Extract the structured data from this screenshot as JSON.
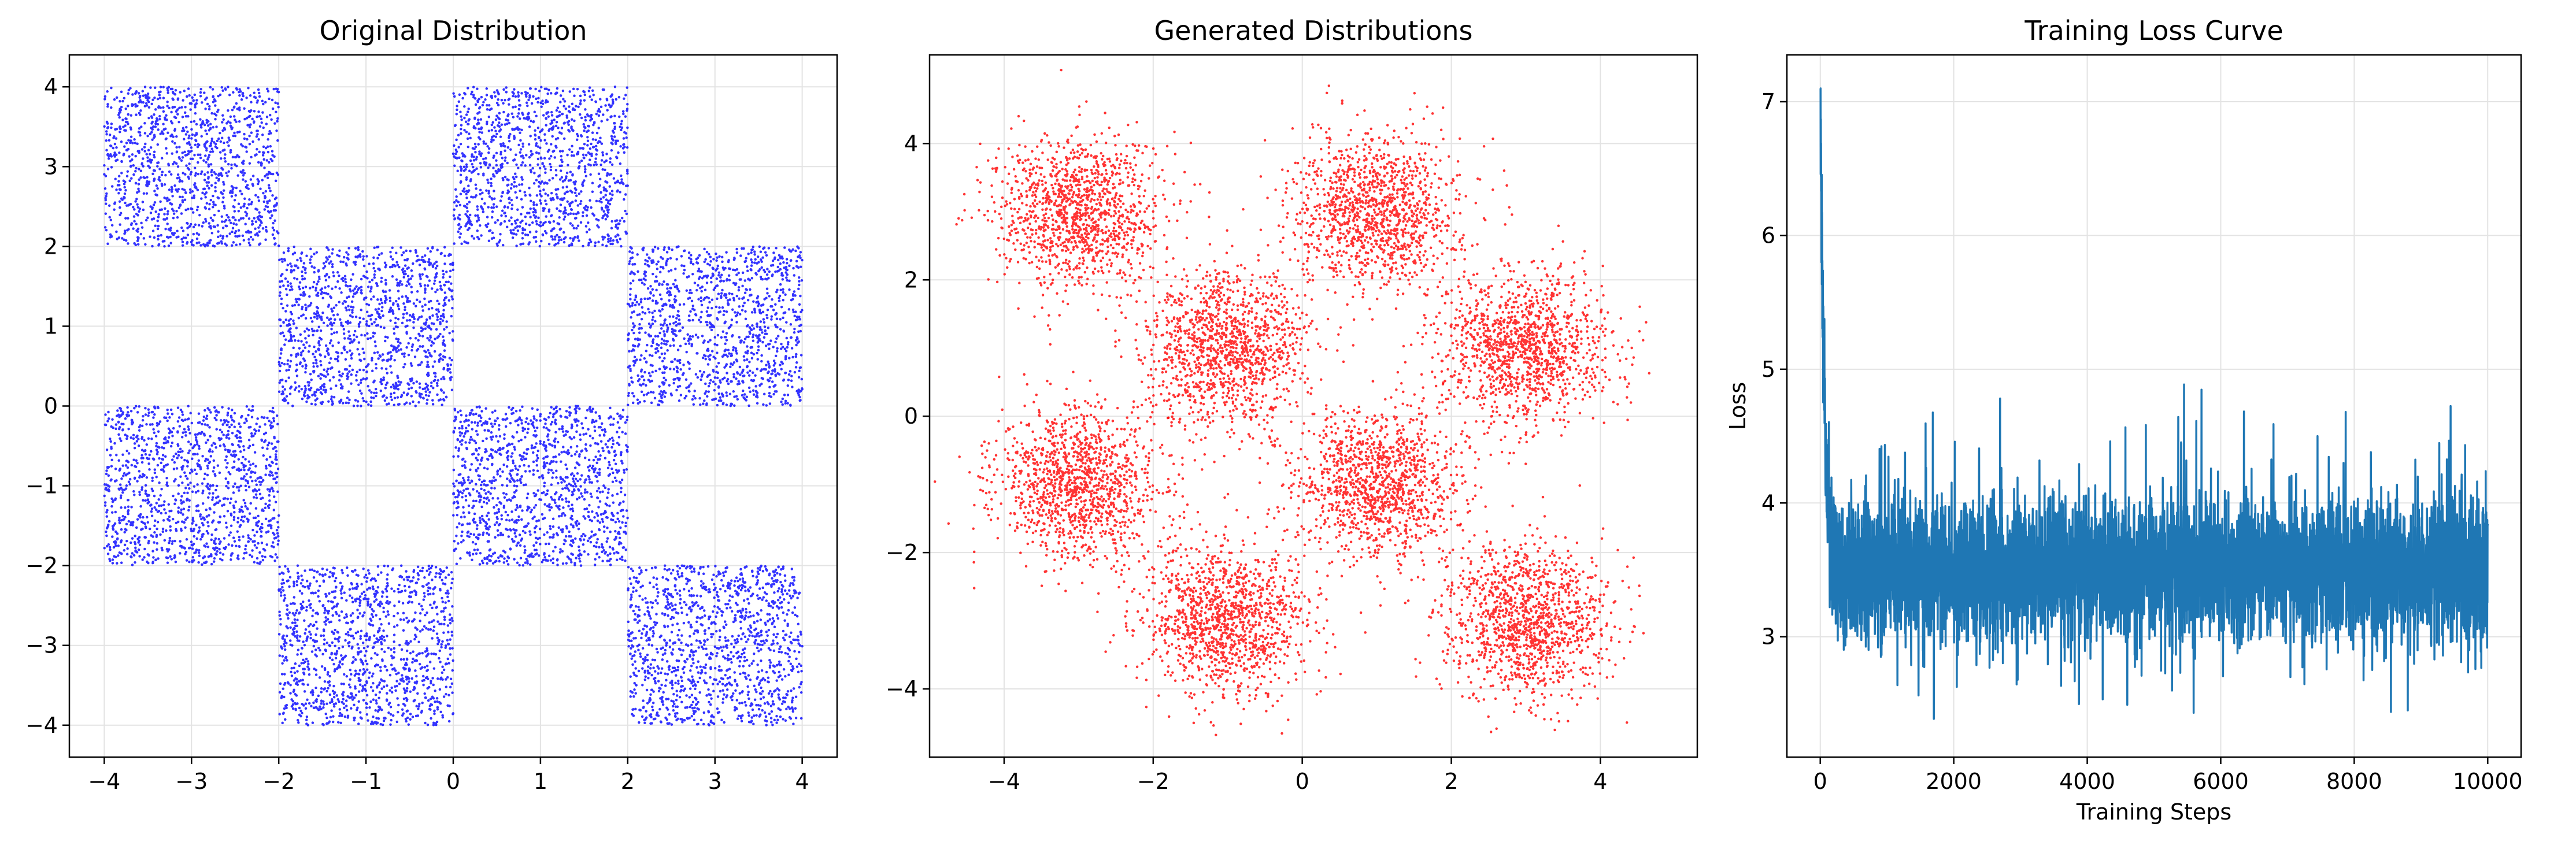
{
  "chart_data": [
    {
      "type": "scatter",
      "title": "Original Distribution",
      "xlabel": "",
      "ylabel": "",
      "xlim": [
        -4.4,
        4.4
      ],
      "ylim": [
        -4.4,
        4.4
      ],
      "xticks": [
        -4,
        -3,
        -2,
        -1,
        0,
        1,
        2,
        3,
        4
      ],
      "yticks": [
        -4,
        -3,
        -2,
        -1,
        0,
        1,
        2,
        3,
        4
      ],
      "xtick_labels": [
        "−4",
        "−3",
        "−2",
        "−1",
        "0",
        "1",
        "2",
        "3",
        "4"
      ],
      "ytick_labels": [
        "−4",
        "−3",
        "−2",
        "−1",
        "0",
        "1",
        "2",
        "3",
        "4"
      ],
      "grid": true,
      "color": "#0000ff",
      "distribution": "uniform points in the black squares of a 4x4 checkerboard",
      "squares": [
        {
          "x": [
            -4,
            -2
          ],
          "y": [
            2,
            4
          ]
        },
        {
          "x": [
            0,
            2
          ],
          "y": [
            2,
            4
          ]
        },
        {
          "x": [
            -2,
            0
          ],
          "y": [
            0,
            2
          ]
        },
        {
          "x": [
            2,
            4
          ],
          "y": [
            0,
            2
          ]
        },
        {
          "x": [
            -4,
            -2
          ],
          "y": [
            -2,
            0
          ]
        },
        {
          "x": [
            0,
            2
          ],
          "y": [
            -2,
            0
          ]
        },
        {
          "x": [
            -2,
            0
          ],
          "y": [
            -4,
            -2
          ]
        },
        {
          "x": [
            2,
            4
          ],
          "y": [
            -4,
            -2
          ]
        }
      ],
      "points_per_square": 1250
    },
    {
      "type": "scatter",
      "title": "Generated Distributions",
      "xlabel": "",
      "ylabel": "",
      "xlim": [
        -5,
        5.3
      ],
      "ylim": [
        -5,
        5.3
      ],
      "xticks": [
        -4,
        -2,
        0,
        2,
        4
      ],
      "yticks": [
        -4,
        -2,
        0,
        2,
        4
      ],
      "xtick_labels": [
        "−4",
        "−2",
        "0",
        "2",
        "4"
      ],
      "ytick_labels": [
        "−4",
        "−2",
        "0",
        "2",
        "4"
      ],
      "grid": true,
      "color": "#ff0000",
      "distribution": "gaussian clusters centred on the checkerboard squares",
      "clusters": [
        {
          "center": [
            -3,
            3
          ],
          "std": 0.55
        },
        {
          "center": [
            1,
            3
          ],
          "std": 0.55
        },
        {
          "center": [
            -1,
            1
          ],
          "std": 0.55
        },
        {
          "center": [
            3,
            1
          ],
          "std": 0.55
        },
        {
          "center": [
            -3,
            -1
          ],
          "std": 0.55
        },
        {
          "center": [
            1,
            -1
          ],
          "std": 0.55
        },
        {
          "center": [
            -1,
            -3
          ],
          "std": 0.55
        },
        {
          "center": [
            3,
            -3
          ],
          "std": 0.55
        }
      ],
      "points_per_cluster": 1250
    },
    {
      "type": "line",
      "title": "Training Loss Curve",
      "xlabel": "Training Steps",
      "ylabel": "Loss",
      "xlim": [
        -500,
        10500
      ],
      "ylim": [
        2.1,
        7.35
      ],
      "xticks": [
        0,
        2000,
        4000,
        6000,
        8000,
        10000
      ],
      "yticks": [
        3,
        4,
        5,
        6,
        7
      ],
      "xtick_labels": [
        "0",
        "2000",
        "4000",
        "6000",
        "8000",
        "10000"
      ],
      "ytick_labels": [
        "3",
        "4",
        "5",
        "6",
        "7"
      ],
      "grid": true,
      "color": "#1f77b4",
      "steps": 10000,
      "initial_loss": 7.1,
      "steady_state_mean": 3.5,
      "steady_state_range": [
        2.35,
        5.05
      ],
      "series": [
        {
          "x": [
            0,
            10,
            20,
            40,
            60,
            80,
            100,
            150,
            200,
            300,
            500,
            1000,
            3000,
            5000,
            7000,
            9000,
            10000
          ],
          "values": [
            7.1,
            6.4,
            5.9,
            5.5,
            4.9,
            4.6,
            4.4,
            4.2,
            4.5,
            3.6,
            4.7,
            4.6,
            5.05,
            4.95,
            4.8,
            4.5,
            4.1
          ]
        }
      ]
    }
  ]
}
